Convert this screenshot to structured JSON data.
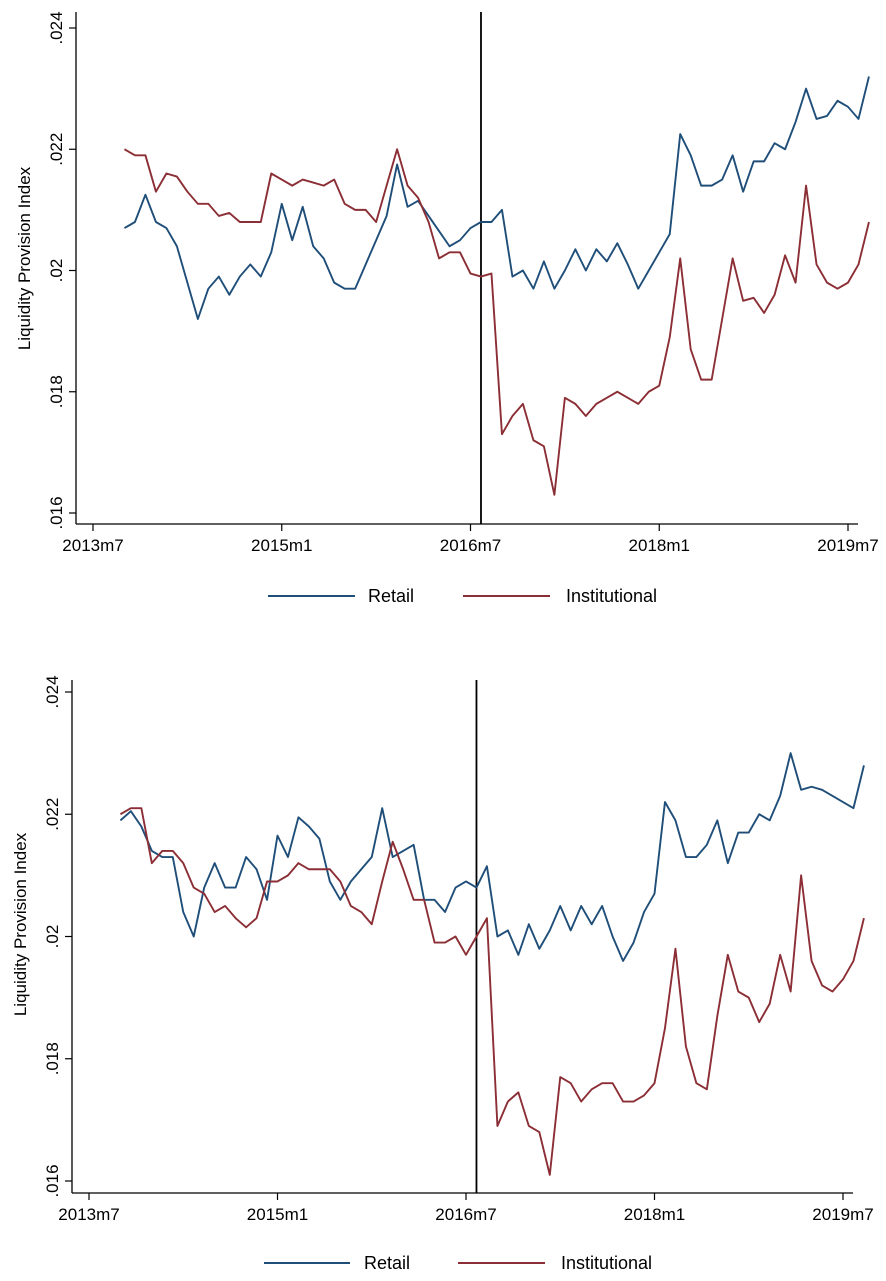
{
  "chart_data": [
    {
      "type": "line",
      "title": "",
      "xlabel": "",
      "ylabel": "Liquidity Provision Index",
      "ylim": [
        0.016,
        0.024
      ],
      "xlim": [
        "2013-07",
        "2019-07"
      ],
      "x_tick_labels": [
        "2013m7",
        "2015m1",
        "2016m7",
        "2018m1",
        "2019m7"
      ],
      "y_tick_labels": [
        ".016",
        ".018",
        ".02",
        ".022",
        ".024"
      ],
      "y_ticks": [
        0.016,
        0.018,
        0.02,
        0.022,
        0.024
      ],
      "event_line_x": "2016-08",
      "legend_position": "bottom",
      "x_start": "2013-10",
      "series": [
        {
          "name": "Retail",
          "color": "#1f4e79",
          "values": [
            0.0207,
            0.0208,
            0.02125,
            0.0208,
            0.0207,
            0.0204,
            0.0198,
            0.0192,
            0.0197,
            0.0199,
            0.0196,
            0.0199,
            0.0201,
            0.0199,
            0.0203,
            0.0211,
            0.0205,
            0.02105,
            0.0204,
            0.0202,
            0.0198,
            0.0197,
            0.0197,
            0.0201,
            0.0205,
            0.0209,
            0.02175,
            0.02105,
            0.02115,
            0.0209,
            0.02065,
            0.0204,
            0.0205,
            0.0207,
            0.0208,
            0.0208,
            0.021,
            0.0199,
            0.02,
            0.0197,
            0.02015,
            0.0197,
            0.02,
            0.02035,
            0.02,
            0.02035,
            0.02015,
            0.02045,
            0.0201,
            0.0197,
            0.02,
            0.0203,
            0.0206,
            0.02225,
            0.0219,
            0.0214,
            0.0214,
            0.0215,
            0.0219,
            0.0213,
            0.0218,
            0.0218,
            0.0221,
            0.022,
            0.02245,
            0.023,
            0.0225,
            0.02255,
            0.0228,
            0.0227,
            0.0225,
            0.0232
          ]
        },
        {
          "name": "Institutional",
          "color": "#8b2e35",
          "values": [
            0.022,
            0.0219,
            0.0219,
            0.0213,
            0.0216,
            0.02155,
            0.0213,
            0.0211,
            0.0211,
            0.0209,
            0.02095,
            0.0208,
            0.0208,
            0.0208,
            0.0216,
            0.0215,
            0.0214,
            0.0215,
            0.02145,
            0.0214,
            0.0215,
            0.0211,
            0.021,
            0.021,
            0.0208,
            0.0214,
            0.022,
            0.0214,
            0.0212,
            0.0208,
            0.0202,
            0.0203,
            0.0203,
            0.01995,
            0.0199,
            0.01995,
            0.0173,
            0.0176,
            0.0178,
            0.0172,
            0.0171,
            0.0163,
            0.0179,
            0.0178,
            0.0176,
            0.0178,
            0.0179,
            0.018,
            0.0179,
            0.0178,
            0.018,
            0.0181,
            0.0189,
            0.0202,
            0.0187,
            0.0182,
            0.0182,
            0.0192,
            0.0202,
            0.0195,
            0.01955,
            0.0193,
            0.0196,
            0.02025,
            0.0198,
            0.0214,
            0.0201,
            0.0198,
            0.0197,
            0.0198,
            0.0201,
            0.0208
          ]
        }
      ]
    },
    {
      "type": "line",
      "title": "",
      "xlabel": "",
      "ylabel": "Liquidity Provision Index",
      "ylim": [
        0.016,
        0.024
      ],
      "xlim": [
        "2013-07",
        "2019-07"
      ],
      "x_tick_labels": [
        "2013m7",
        "2015m1",
        "2016m7",
        "2018m1",
        "2019m7"
      ],
      "y_tick_labels": [
        ".016",
        ".018",
        ".02",
        ".022",
        ".024"
      ],
      "y_ticks": [
        0.016,
        0.018,
        0.02,
        0.022,
        0.024
      ],
      "event_line_x": "2016-08",
      "legend_position": "bottom",
      "x_start": "2013-10",
      "series": [
        {
          "name": "Retail",
          "color": "#1f4e79",
          "values": [
            0.0219,
            0.02205,
            0.0218,
            0.0214,
            0.0213,
            0.0213,
            0.0204,
            0.02,
            0.0208,
            0.0212,
            0.0208,
            0.0208,
            0.0213,
            0.0211,
            0.0206,
            0.02165,
            0.0213,
            0.02195,
            0.0218,
            0.0216,
            0.0209,
            0.0206,
            0.0209,
            0.0211,
            0.0213,
            0.0221,
            0.0213,
            0.0214,
            0.0215,
            0.0206,
            0.0206,
            0.0204,
            0.0208,
            0.0209,
            0.0208,
            0.02115,
            0.02,
            0.0201,
            0.0197,
            0.0202,
            0.0198,
            0.0201,
            0.0205,
            0.0201,
            0.0205,
            0.0202,
            0.0205,
            0.02,
            0.0196,
            0.0199,
            0.0204,
            0.0207,
            0.0222,
            0.0219,
            0.0213,
            0.0213,
            0.0215,
            0.0219,
            0.0212,
            0.0217,
            0.0217,
            0.022,
            0.0219,
            0.0223,
            0.023,
            0.0224,
            0.02245,
            0.0224,
            0.0223,
            0.0222,
            0.0221,
            0.0228
          ]
        },
        {
          "name": "Institutional",
          "color": "#8b2e35",
          "values": [
            0.022,
            0.0221,
            0.0221,
            0.0212,
            0.0214,
            0.0214,
            0.0212,
            0.0208,
            0.0207,
            0.0204,
            0.0205,
            0.0203,
            0.02015,
            0.0203,
            0.0209,
            0.0209,
            0.021,
            0.0212,
            0.0211,
            0.0211,
            0.0211,
            0.0209,
            0.0205,
            0.0204,
            0.0202,
            0.0209,
            0.02155,
            0.0211,
            0.0206,
            0.0206,
            0.0199,
            0.0199,
            0.02,
            0.0197,
            0.02,
            0.0203,
            0.0169,
            0.0173,
            0.01745,
            0.0169,
            0.0168,
            0.0161,
            0.0177,
            0.0176,
            0.0173,
            0.0175,
            0.0176,
            0.0176,
            0.0173,
            0.0173,
            0.0174,
            0.0176,
            0.0185,
            0.0198,
            0.0182,
            0.0176,
            0.0175,
            0.0187,
            0.0197,
            0.0191,
            0.019,
            0.0186,
            0.0189,
            0.0197,
            0.0191,
            0.021,
            0.0196,
            0.0192,
            0.0191,
            0.0193,
            0.0196,
            0.0203
          ]
        }
      ]
    }
  ]
}
